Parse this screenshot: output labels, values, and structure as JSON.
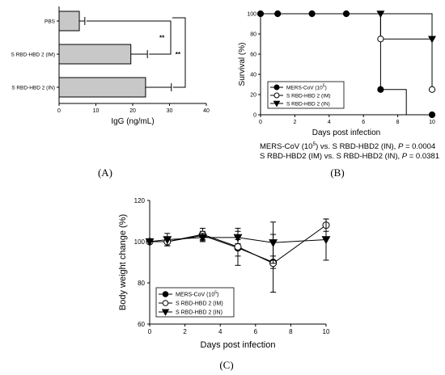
{
  "panels": {
    "a": "(A)",
    "b": "(B)",
    "c": "(C)"
  },
  "chart_data": [
    {
      "type": "bar",
      "orientation": "horizontal",
      "categories": [
        "PBS",
        "S RBD-HBD 2 (IM)",
        "S RBD-HBD 2 (IN)"
      ],
      "values": [
        5.5,
        19.5,
        23.5
      ],
      "errors": [
        1.5,
        4.5,
        7.0
      ],
      "xlabel": "IgG (ng/mL)",
      "xlim": [
        0,
        40
      ],
      "xticks": [
        "0",
        "10",
        "20",
        "30",
        "40"
      ],
      "significance": [
        {
          "pair": "PBS vs S RBD-HBD 2 (IM)",
          "label": "**"
        },
        {
          "pair": "PBS vs S RBD-HBD 2 (IN)",
          "label": "**"
        }
      ],
      "bar_color": "#c8c8c8"
    },
    {
      "type": "line",
      "step": true,
      "xlabel": "Days post infection",
      "ylabel": "Survival (%)",
      "xlim": [
        0,
        10
      ],
      "ylim": [
        0,
        100
      ],
      "xticks": [
        "0",
        "2",
        "4",
        "6",
        "8",
        "10"
      ],
      "yticks": [
        "0",
        "20",
        "40",
        "60",
        "80",
        "100"
      ],
      "legend_position": "bottom-left",
      "series": [
        {
          "name": "MERS-CoV (10",
          "sup": "5",
          "name_end": ")",
          "marker": "filled-circle",
          "x": [
            0,
            1,
            3,
            5,
            7,
            8.5,
            10
          ],
          "y": [
            100,
            100,
            100,
            100,
            25,
            0,
            0
          ],
          "markers_x": [
            0,
            1,
            3,
            5,
            7,
            10
          ],
          "markers_y": [
            100,
            100,
            100,
            100,
            25,
            0
          ]
        },
        {
          "name": "S RBD-HBD 2 (IM)",
          "marker": "open-circle",
          "x": [
            0,
            6,
            7,
            10
          ],
          "y": [
            100,
            100,
            75,
            25
          ],
          "markers_x": [
            7,
            10
          ],
          "markers_y": [
            75,
            25
          ]
        },
        {
          "name": "S RBD-HBD 2 (IN)",
          "marker": "filled-triangle",
          "x": [
            0,
            7,
            10
          ],
          "y": [
            100,
            100,
            75
          ],
          "markers_x": [
            7,
            10
          ],
          "markers_y": [
            100,
            75
          ]
        }
      ],
      "stats": [
        {
          "line_a": "MERS-CoV (10",
          "sup": "5",
          "line_b": ") vs. S RBD-HBD2 (IN), ",
          "p_label": "P",
          "p_value": " = 0.0004"
        },
        {
          "line_a": "S RBD-HBD2 (IM) vs. S RBD-HBD2 (IN), ",
          "sup": "",
          "line_b": "",
          "p_label": "P",
          "p_value": " = 0.0381"
        }
      ]
    },
    {
      "type": "line",
      "xlabel": "Days post infection",
      "ylabel": "Body weight change (%)",
      "xlim": [
        0,
        10
      ],
      "ylim": [
        60,
        120
      ],
      "xticks": [
        "0",
        "2",
        "4",
        "6",
        "8",
        "10"
      ],
      "yticks": [
        "60",
        "80",
        "100",
        "120"
      ],
      "legend_position": "bottom-left",
      "series": [
        {
          "name": "MERS-CoV (10",
          "sup": "5",
          "name_end": ")",
          "marker": "filled-circle",
          "x": [
            0,
            1,
            3,
            5,
            7
          ],
          "y": [
            100,
            100,
            103,
            97,
            90
          ],
          "err": [
            0,
            2,
            2,
            4,
            3
          ]
        },
        {
          "name": "S RBD-HBD 2 (IM)",
          "marker": "open-circle",
          "x": [
            0,
            1,
            3,
            5,
            7,
            10
          ],
          "y": [
            100,
            100,
            103.5,
            97.5,
            89.5,
            108
          ],
          "err": [
            0,
            2,
            3,
            9,
            14,
            3
          ]
        },
        {
          "name": "S RBD-HBD 2 (IN)",
          "marker": "filled-triangle",
          "x": [
            0,
            1,
            3,
            5,
            7,
            10
          ],
          "y": [
            100,
            101,
            102,
            102,
            99.5,
            101
          ],
          "err": [
            0,
            3,
            2,
            3,
            10,
            10
          ]
        }
      ]
    }
  ]
}
